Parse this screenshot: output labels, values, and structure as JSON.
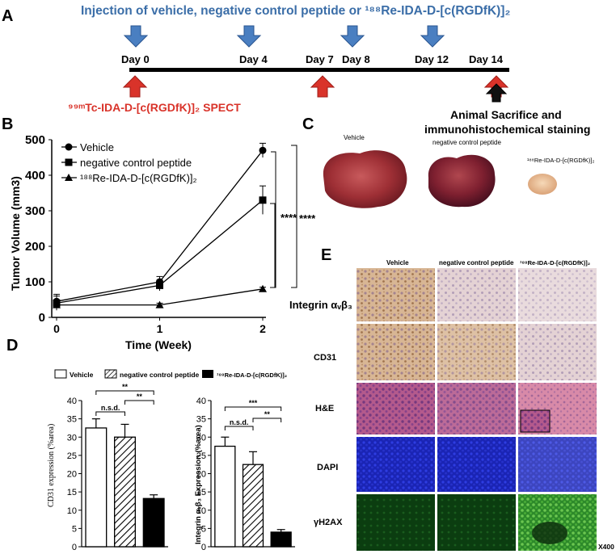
{
  "panel_a": {
    "letter": "A",
    "injection_title": "Injection of vehicle, negative control peptide or ¹⁸⁸Re-IDA-D-[c(RGDfK)]₂",
    "days": [
      "Day 0",
      "Day 4",
      "Day 7",
      "Day 8",
      "Day 12",
      "Day 14"
    ],
    "spect_label": "⁹⁹ᵐTc-IDA-D-[c(RGDfK)]₂ SPECT",
    "sacrifice_line1": "Animal Sacrifice and",
    "sacrifice_line2": "immunohistochemical staining",
    "colors": {
      "injection_arrow": "#4a7fc1",
      "spect_arrow": "#d9332a",
      "title_text": "#3b6ea8",
      "spect_text": "#d9332a"
    }
  },
  "panel_b": {
    "letter": "B",
    "significance": [
      "****",
      "****"
    ]
  },
  "panel_c": {
    "letter": "C",
    "labels": [
      "Vehicle",
      "negative control peptide",
      "¹⁸⁸Re-IDA-D-[c(RGDfK)]₂"
    ]
  },
  "panel_d": {
    "letter": "D",
    "legend": [
      "Vehicle",
      "negative control peptide",
      "¹⁸⁸Re-IDA-D-[c(RGDfK)]₂"
    ],
    "sig_labels": {
      "cd31": [
        "n.s.d.",
        "**",
        "**"
      ],
      "integrin": [
        "n.s.d.",
        "***",
        "**"
      ]
    }
  },
  "panel_e": {
    "letter": "E",
    "columns": [
      "Vehicle",
      "negative control peptide",
      "¹⁸⁸Re-IDA-D-[c(RGDfK)]₂"
    ],
    "rows": [
      "Integrin αᵥβ₃",
      "CD31",
      "H&E",
      "DAPI",
      "γH2AX"
    ],
    "magnification": "X400"
  },
  "chart_data": [
    {
      "type": "line",
      "xlabel": "Time (Week)",
      "ylabel": "Tumor Volume (mm3)",
      "x": [
        0,
        1,
        2
      ],
      "xlim": [
        0,
        2
      ],
      "ylim": [
        0,
        500
      ],
      "yticks": [
        0,
        100,
        200,
        300,
        400,
        500
      ],
      "grid": false,
      "legend_position": "top-left",
      "series": [
        {
          "name": "Vehicle",
          "marker": "circle",
          "values": [
            45,
            100,
            470
          ],
          "errors": [
            20,
            15,
            20
          ]
        },
        {
          "name": "negative control peptide",
          "marker": "square",
          "values": [
            40,
            90,
            330
          ],
          "errors": [
            20,
            15,
            40
          ]
        },
        {
          "name": "¹⁸⁸Re-IDA-D-[c(RGDfK)]₂",
          "marker": "triangle",
          "values": [
            35,
            35,
            80
          ],
          "errors": [
            10,
            5,
            5
          ]
        }
      ]
    },
    {
      "type": "bar",
      "ylabel": "CD31 expression (%area)",
      "categories": [
        "Vehicle",
        "negative control peptide",
        "¹⁸⁸Re-IDA-D-[c(RGDfK)]₂"
      ],
      "values": [
        32.5,
        30,
        13.2
      ],
      "errors": [
        2.5,
        3.5,
        1
      ],
      "ylim": [
        0,
        40
      ],
      "yticks": [
        0,
        5,
        10,
        15,
        20,
        25,
        30,
        35,
        40
      ]
    },
    {
      "type": "bar",
      "ylabel": "Integrin αᵥβ₃ Expression (%area)",
      "categories": [
        "Vehicle",
        "negative control peptide",
        "¹⁸⁸Re-IDA-D-[c(RGDfK)]₂"
      ],
      "values": [
        27.5,
        22.5,
        4
      ],
      "errors": [
        2.5,
        3.5,
        0.7
      ],
      "ylim": [
        0,
        40
      ],
      "yticks": [
        0,
        5,
        10,
        15,
        20,
        25,
        30,
        35,
        40
      ]
    }
  ]
}
